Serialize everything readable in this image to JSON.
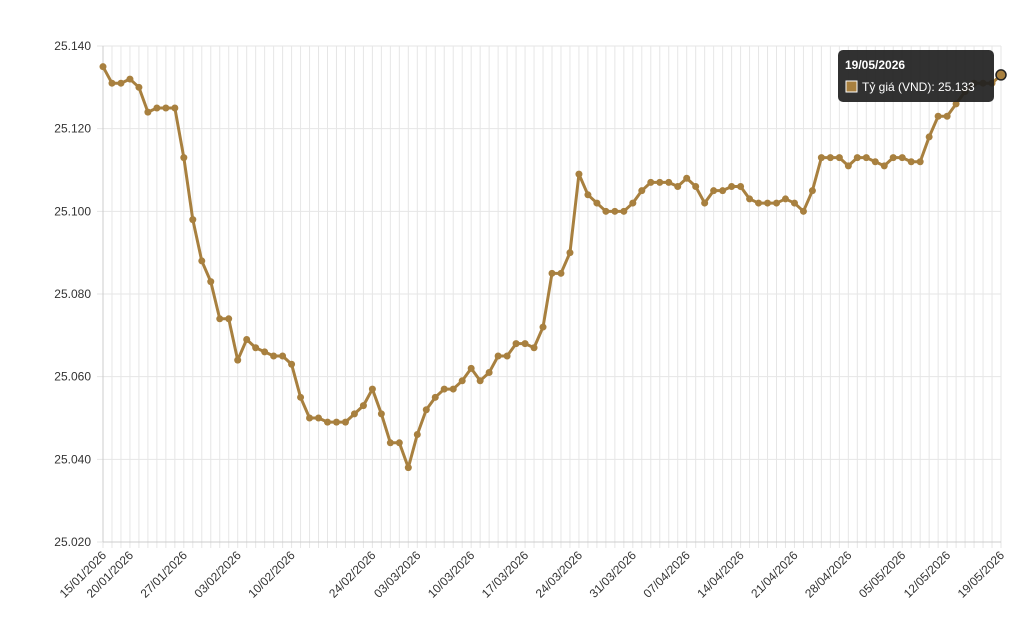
{
  "chart_data": {
    "type": "line",
    "categories": [
      "15/01/2026",
      null,
      null,
      "20/01/2026",
      null,
      null,
      null,
      null,
      null,
      "27/01/2026",
      null,
      null,
      null,
      null,
      null,
      "03/02/2026",
      null,
      null,
      null,
      null,
      null,
      "10/02/2026",
      null,
      null,
      null,
      null,
      null,
      null,
      null,
      null,
      "24/02/2026",
      null,
      null,
      null,
      null,
      "03/03/2026",
      null,
      null,
      null,
      null,
      null,
      "10/03/2026",
      null,
      null,
      null,
      null,
      null,
      "17/03/2026",
      null,
      null,
      null,
      null,
      null,
      "24/03/2026",
      null,
      null,
      null,
      null,
      null,
      "31/03/2026",
      null,
      null,
      null,
      null,
      null,
      "07/04/2026",
      null,
      null,
      null,
      null,
      null,
      "14/04/2026",
      null,
      null,
      null,
      null,
      null,
      "21/04/2026",
      null,
      null,
      null,
      null,
      null,
      "28/04/2026",
      null,
      null,
      null,
      null,
      null,
      "05/05/2026",
      null,
      null,
      null,
      null,
      "12/05/2026",
      null,
      null,
      null,
      null,
      null,
      "19/05/2026"
    ],
    "series": [
      {
        "color": "#a8803f",
        "values": [
          25135,
          25131,
          25131,
          25132,
          25130,
          25124,
          25125,
          25125,
          25125,
          25113,
          25098,
          25088,
          25083,
          25074,
          25074,
          25064,
          25069,
          25067,
          25066,
          25065,
          25065,
          25063,
          25055,
          25050,
          25050,
          25049,
          25049,
          25049,
          25051,
          25053,
          25057,
          25051,
          25044,
          25044,
          25038,
          25046,
          25052,
          25055,
          25057,
          25057,
          25059,
          25062,
          25059,
          25061,
          25065,
          25065,
          25068,
          25068,
          25067,
          25072,
          25085,
          25085,
          25090,
          25109,
          25104,
          25102,
          25100,
          25100,
          25100,
          25102,
          25105,
          25107,
          25107,
          25107,
          25106,
          25108,
          25106,
          25102,
          25105,
          25105,
          25106,
          25106,
          25103,
          25102,
          25102,
          25102,
          25103,
          25102,
          25100,
          25105,
          25113,
          25113,
          25113,
          25111,
          25113,
          25113,
          25112,
          25111,
          25113,
          25113,
          25112,
          25112,
          25118,
          25123,
          25123,
          25126,
          25129,
          25131,
          25131,
          25131,
          25133
        ]
      }
    ],
    "ylim": [
      25020,
      25140
    ],
    "yticks": [
      {
        "value": 25020,
        "label": "25.020"
      },
      {
        "value": 25040,
        "label": "25.040"
      },
      {
        "value": 25060,
        "label": "25.060"
      },
      {
        "value": 25080,
        "label": "25.080"
      },
      {
        "value": 25100,
        "label": "25.100"
      },
      {
        "value": 25120,
        "label": "25.120"
      },
      {
        "value": 25140,
        "label": "25.140"
      }
    ],
    "grid": true,
    "tooltip": {
      "title": "19/05/2026",
      "text": "Tỷ giá (VND): 25.133"
    }
  }
}
